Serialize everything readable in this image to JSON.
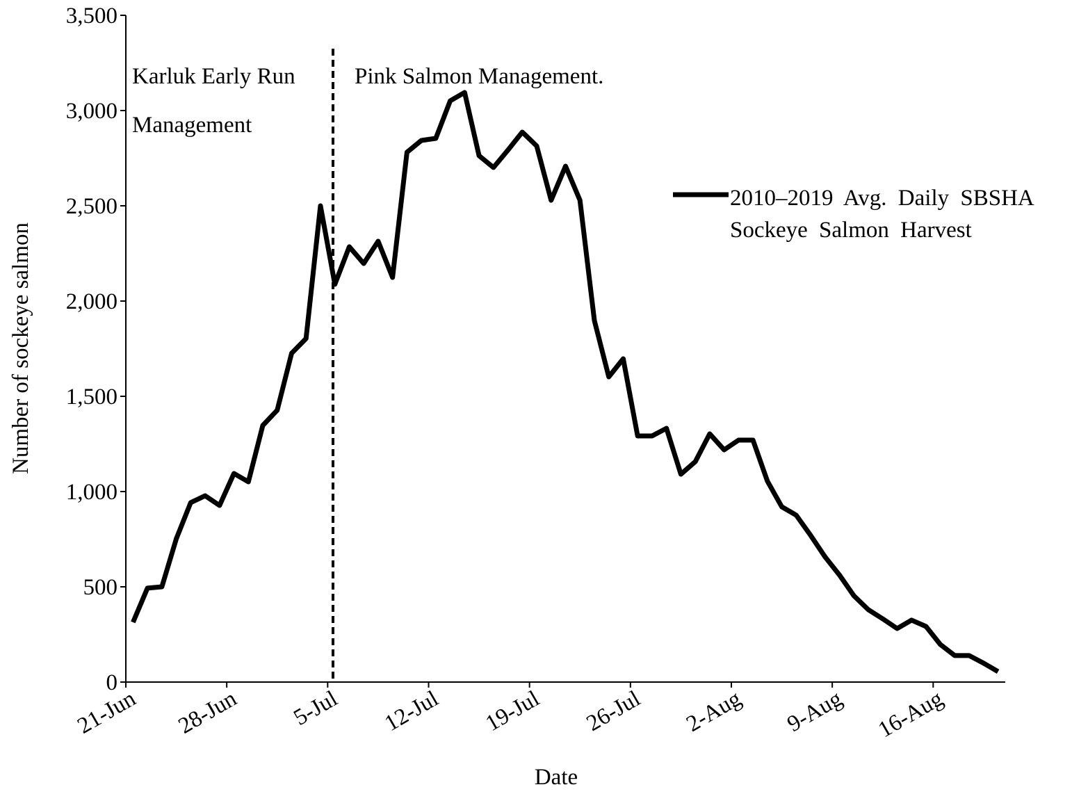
{
  "chart_data": {
    "type": "line",
    "x_label": "Date",
    "y_label": "Number of sockeye salmon",
    "annotations": [
      "Karluk Early Run Management",
      "Pink Salmon Management."
    ],
    "categories": [
      "21-Jun",
      null,
      null,
      null,
      null,
      null,
      null,
      "28-Jun",
      null,
      null,
      null,
      null,
      null,
      null,
      "5-Jul",
      null,
      null,
      null,
      null,
      null,
      null,
      "12-Jul",
      null,
      null,
      null,
      null,
      null,
      null,
      "19-Jul",
      null,
      null,
      null,
      null,
      null,
      null,
      "26-Jul",
      null,
      null,
      null,
      null,
      null,
      null,
      "2-Aug",
      null,
      null,
      null,
      null,
      null,
      null,
      "9-Aug",
      null,
      null,
      null,
      null,
      null,
      null,
      "16-Aug",
      null,
      null,
      null,
      null
    ],
    "series": [
      {
        "name": "2010–2019 Avg. Daily SBSHA Sockeye Salmon Harvest",
        "color": "#000000",
        "values": [
          314,
          493,
          500,
          752,
          942,
          978,
          927,
          1095,
          1051,
          1347,
          1427,
          1726,
          1803,
          2500,
          2088,
          2285,
          2197,
          2314,
          2124,
          2781,
          2843,
          2854,
          3051,
          3095,
          2763,
          2701,
          2792,
          2887,
          2814,
          2529,
          2708,
          2529,
          1898,
          1602,
          1697,
          1292,
          1292,
          1332,
          1091,
          1157,
          1303,
          1219,
          1270,
          1270,
          1055,
          920,
          876,
          770,
          657,
          562,
          453,
          380,
          332,
          281,
          325,
          292,
          197,
          139,
          139,
          99,
          55
        ]
      }
    ],
    "ylim": [
      0,
      3500
    ],
    "yticks": [
      0,
      500,
      {
        "value": 1000,
        "label": "1,000"
      },
      {
        "value": 1500,
        "label": "1,500"
      },
      {
        "value": 2000,
        "label": "2,000"
      },
      {
        "value": 2500,
        "label": "2,500"
      },
      {
        "value": 3000,
        "label": "3,000"
      },
      {
        "value": 3500,
        "label": "3,500"
      }
    ],
    "grid": false
  }
}
